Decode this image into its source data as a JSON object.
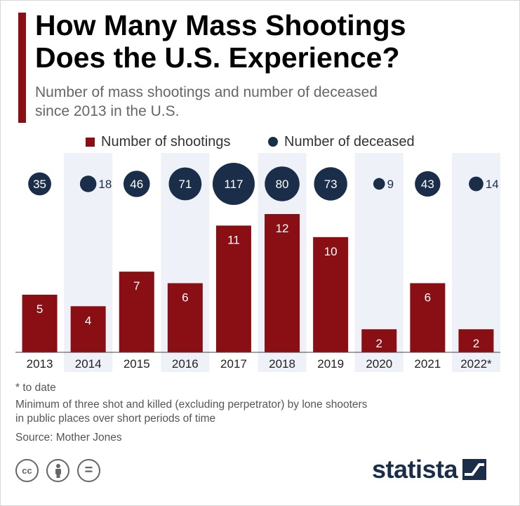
{
  "header": {
    "title_line1": "How Many Mass Shootings",
    "title_line2": "Does the U.S. Experience?",
    "subtitle_line1": "Number of mass shootings and number of deceased",
    "subtitle_line2": "since 2013 in the U.S."
  },
  "colors": {
    "accent": "#8a0f14",
    "bar": "#8a0f14",
    "bubble": "#1a2e4a",
    "band": "#eef1f8"
  },
  "chart_data": {
    "type": "bar",
    "categories": [
      "2013",
      "2014",
      "2015",
      "2016",
      "2017",
      "2018",
      "2019",
      "2020",
      "2021",
      "2022*"
    ],
    "series": [
      {
        "name": "Number of shootings",
        "values": [
          5,
          4,
          7,
          6,
          11,
          12,
          10,
          2,
          6,
          2
        ]
      },
      {
        "name": "Number of deceased",
        "values": [
          35,
          18,
          46,
          71,
          117,
          80,
          73,
          9,
          43,
          14
        ]
      }
    ],
    "legend_position": "top",
    "grid": false,
    "alternating_bands": true
  },
  "notes": {
    "to_date": "* to date",
    "method_line1": "Minimum of three shot and killed (excluding perpetrator) by lone shooters",
    "method_line2": "in public places over short periods of time",
    "source": "Source: Mother Jones"
  },
  "license_icons": [
    "cc-icon",
    "attribution-icon",
    "no-derivatives-icon"
  ],
  "license_labels": {
    "cc": "cc",
    "nd": "="
  },
  "brand": {
    "name": "statista"
  }
}
